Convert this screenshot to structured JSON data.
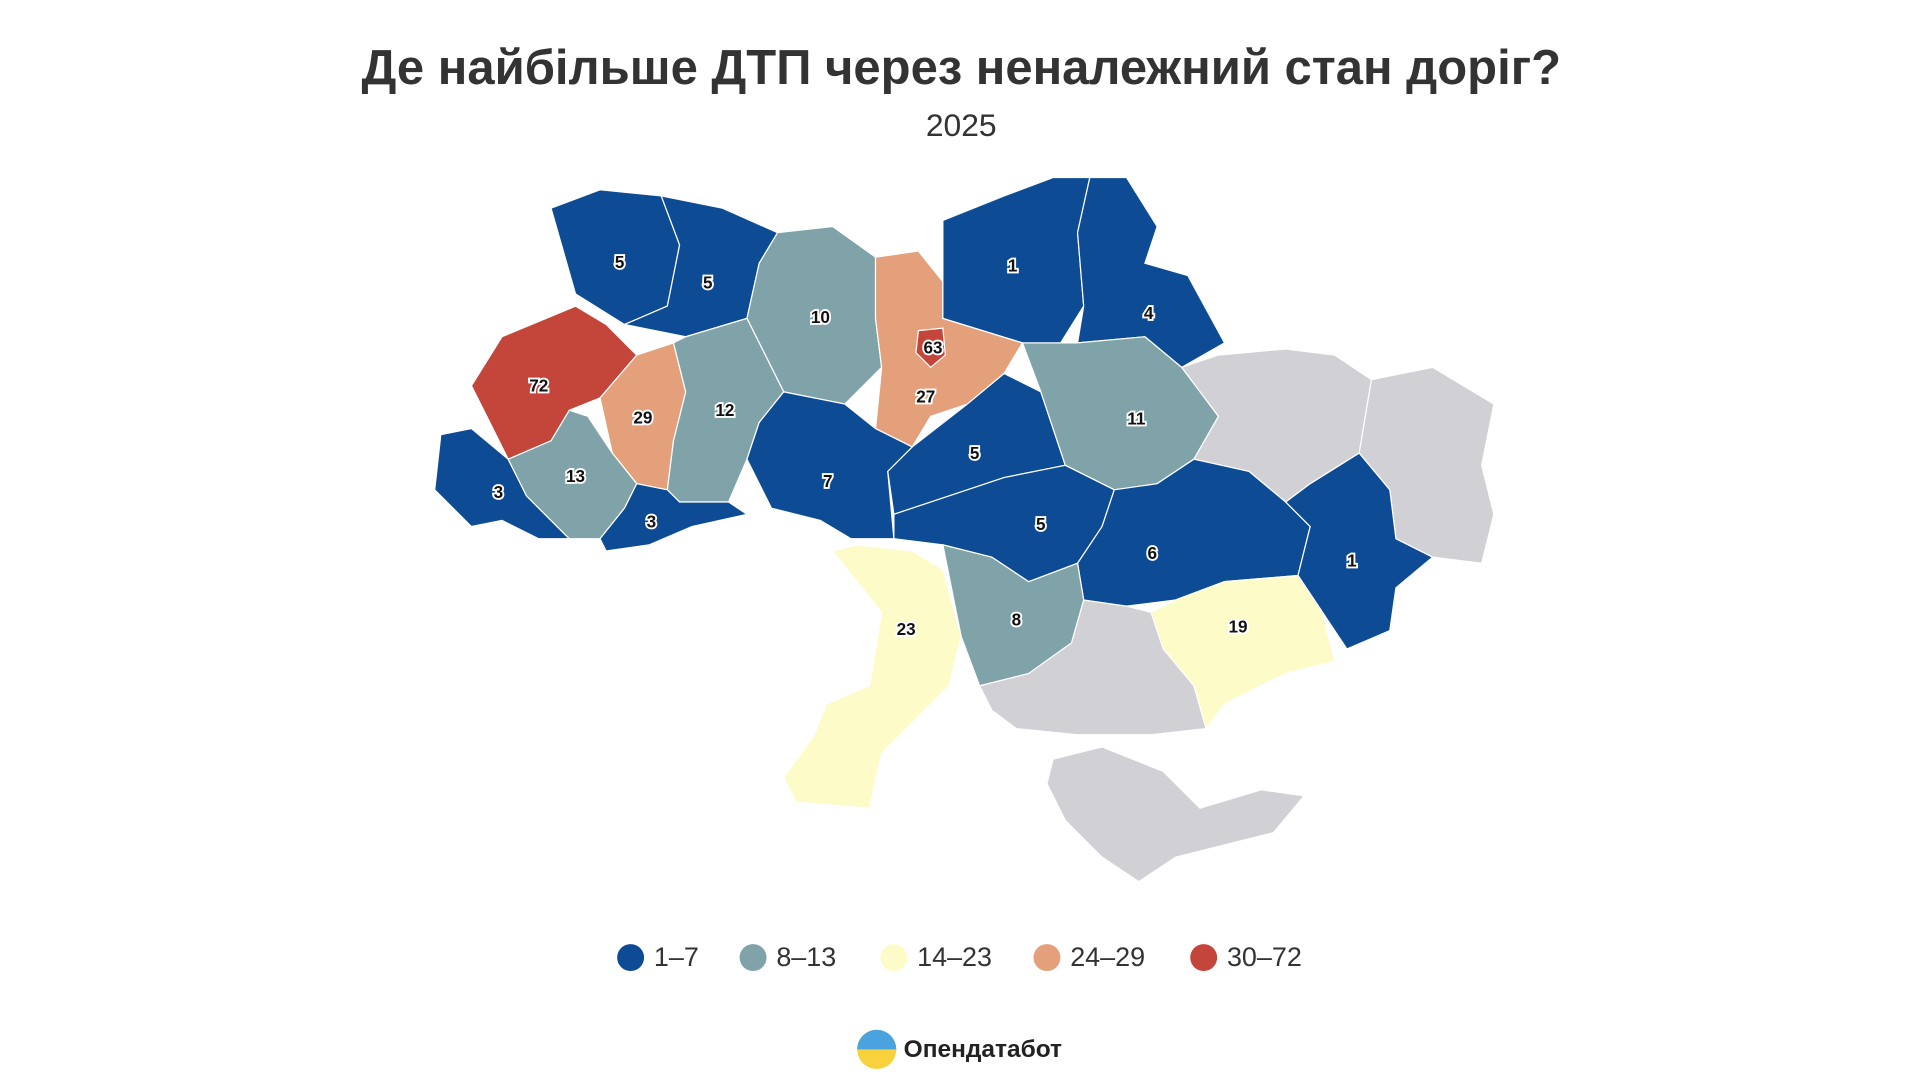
{
  "chart_data": {
    "type": "map",
    "title": "Де найбільше ДТП через неналежний стан доріг?",
    "subtitle": "2025",
    "regions": [
      {
        "value": 5,
        "color": "#0d4b94"
      },
      {
        "value": 5,
        "color": "#0d4b94"
      },
      {
        "value": 10,
        "color": "#7fa3a8"
      },
      {
        "value": 27,
        "color": "#e3a07b"
      },
      {
        "value": 1,
        "color": "#0d4b94"
      },
      {
        "value": 4,
        "color": "#0d4b94"
      },
      {
        "value": 72,
        "color": "#c4463a"
      },
      {
        "value": 29,
        "color": "#e3a07b"
      },
      {
        "value": 12,
        "color": "#7fa3a8"
      },
      {
        "value": 7,
        "color": "#0d4b94"
      },
      {
        "value": 5,
        "color": "#0d4b94"
      },
      {
        "value": 11,
        "color": "#7fa3a8"
      },
      {
        "value": 3,
        "color": "#0d4b94"
      },
      {
        "value": 13,
        "color": "#7fa3a8"
      },
      {
        "value": 3,
        "color": "#0d4b94"
      },
      {
        "value": 5,
        "color": "#0d4b94"
      },
      {
        "value": 6,
        "color": "#0d4b94"
      },
      {
        "value": 1,
        "color": "#0d4b94"
      },
      {
        "value": 23,
        "color": "#fdfbc8"
      },
      {
        "value": 8,
        "color": "#7fa3a8"
      },
      {
        "value": 19,
        "color": "#fdfbc8"
      },
      {
        "value": 63,
        "color": "#c4463a"
      }
    ],
    "legend": [
      {
        "name": "1–7",
        "color": "#0d4b94"
      },
      {
        "name": "8–13",
        "color": "#7fa3a8"
      },
      {
        "name": "14–23",
        "color": "#fdfbc8"
      },
      {
        "name": "24–29",
        "color": "#e3a07b"
      },
      {
        "name": "30–72",
        "color": "#c4463a"
      }
    ]
  },
  "brand": "Опендатабот"
}
